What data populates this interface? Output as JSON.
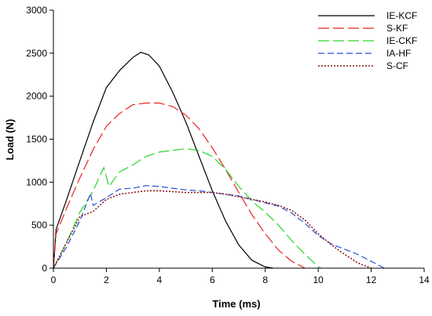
{
  "chart_data": {
    "type": "line",
    "title": "",
    "xlabel": "Time (ms)",
    "ylabel": "Load (N)",
    "xlim": [
      0,
      14
    ],
    "ylim": [
      0,
      3000
    ],
    "xticks": [
      "0",
      "2",
      "4",
      "6",
      "8",
      "10",
      "12",
      "14"
    ],
    "yticks": [
      "0",
      "500",
      "1000",
      "1500",
      "2000",
      "2500",
      "3000"
    ],
    "grid": false,
    "legend_position": "top-right",
    "series": [
      {
        "name": "IE-KCF",
        "color": "#000000",
        "style": "solid",
        "points": [
          [
            0,
            0
          ],
          [
            0.1,
            450
          ],
          [
            0.5,
            800
          ],
          [
            1.0,
            1250
          ],
          [
            1.5,
            1700
          ],
          [
            2.0,
            2100
          ],
          [
            2.5,
            2300
          ],
          [
            3.0,
            2450
          ],
          [
            3.3,
            2510
          ],
          [
            3.6,
            2480
          ],
          [
            4.0,
            2350
          ],
          [
            4.5,
            2050
          ],
          [
            5.0,
            1700
          ],
          [
            5.5,
            1300
          ],
          [
            6.0,
            900
          ],
          [
            6.5,
            550
          ],
          [
            7.0,
            270
          ],
          [
            7.5,
            90
          ],
          [
            8.0,
            15
          ],
          [
            8.3,
            0
          ]
        ]
      },
      {
        "name": "S-KF",
        "color": "#e8251e",
        "style": "long-dash",
        "points": [
          [
            0,
            0
          ],
          [
            0.1,
            400
          ],
          [
            0.5,
            700
          ],
          [
            1.0,
            1050
          ],
          [
            1.5,
            1380
          ],
          [
            2.0,
            1650
          ],
          [
            2.5,
            1800
          ],
          [
            3.0,
            1900
          ],
          [
            3.5,
            1920
          ],
          [
            4.0,
            1920
          ],
          [
            4.5,
            1880
          ],
          [
            5.0,
            1780
          ],
          [
            5.5,
            1620
          ],
          [
            6.0,
            1400
          ],
          [
            6.5,
            1150
          ],
          [
            7.0,
            880
          ],
          [
            7.5,
            620
          ],
          [
            8.0,
            400
          ],
          [
            8.5,
            210
          ],
          [
            9.0,
            80
          ],
          [
            9.5,
            0
          ]
        ]
      },
      {
        "name": "IE-CKF",
        "color": "#2ad62a",
        "style": "long-dash",
        "points": [
          [
            0,
            0
          ],
          [
            0.5,
            300
          ],
          [
            1.0,
            650
          ],
          [
            1.5,
            900
          ],
          [
            1.9,
            1170
          ],
          [
            2.1,
            950
          ],
          [
            2.5,
            1120
          ],
          [
            3.0,
            1200
          ],
          [
            3.5,
            1300
          ],
          [
            4.0,
            1350
          ],
          [
            4.5,
            1370
          ],
          [
            5.0,
            1390
          ],
          [
            5.5,
            1370
          ],
          [
            6.0,
            1300
          ],
          [
            6.5,
            1150
          ],
          [
            7.0,
            950
          ],
          [
            7.5,
            780
          ],
          [
            8.0,
            650
          ],
          [
            8.5,
            500
          ],
          [
            9.0,
            320
          ],
          [
            9.5,
            160
          ],
          [
            10.0,
            20
          ],
          [
            10.1,
            0
          ]
        ]
      },
      {
        "name": "IA-HF",
        "color": "#2a4ed8",
        "style": "dash",
        "points": [
          [
            0,
            0
          ],
          [
            0.5,
            250
          ],
          [
            1.0,
            550
          ],
          [
            1.4,
            870
          ],
          [
            1.5,
            730
          ],
          [
            2.0,
            820
          ],
          [
            2.5,
            920
          ],
          [
            3.0,
            930
          ],
          [
            3.5,
            960
          ],
          [
            4.0,
            950
          ],
          [
            4.5,
            930
          ],
          [
            5.0,
            910
          ],
          [
            5.5,
            900
          ],
          [
            6.0,
            880
          ],
          [
            6.5,
            860
          ],
          [
            7.0,
            840
          ],
          [
            7.5,
            800
          ],
          [
            8.0,
            760
          ],
          [
            8.5,
            720
          ],
          [
            9.0,
            640
          ],
          [
            9.5,
            520
          ],
          [
            10.0,
            380
          ],
          [
            10.5,
            280
          ],
          [
            11.0,
            220
          ],
          [
            11.5,
            160
          ],
          [
            12.0,
            80
          ],
          [
            12.5,
            0
          ]
        ]
      },
      {
        "name": "S-CF",
        "color": "#8b1a1a",
        "style": "dotted",
        "points": [
          [
            0,
            0
          ],
          [
            0.5,
            300
          ],
          [
            1.0,
            600
          ],
          [
            1.5,
            660
          ],
          [
            2.0,
            800
          ],
          [
            2.5,
            860
          ],
          [
            3.0,
            880
          ],
          [
            3.5,
            900
          ],
          [
            4.0,
            900
          ],
          [
            4.5,
            890
          ],
          [
            5.0,
            880
          ],
          [
            5.5,
            880
          ],
          [
            6.0,
            880
          ],
          [
            6.5,
            860
          ],
          [
            7.0,
            830
          ],
          [
            7.5,
            800
          ],
          [
            8.0,
            770
          ],
          [
            8.5,
            730
          ],
          [
            9.0,
            670
          ],
          [
            9.5,
            560
          ],
          [
            10.0,
            400
          ],
          [
            10.5,
            270
          ],
          [
            11.0,
            160
          ],
          [
            11.5,
            60
          ],
          [
            12.0,
            0
          ]
        ]
      }
    ]
  }
}
